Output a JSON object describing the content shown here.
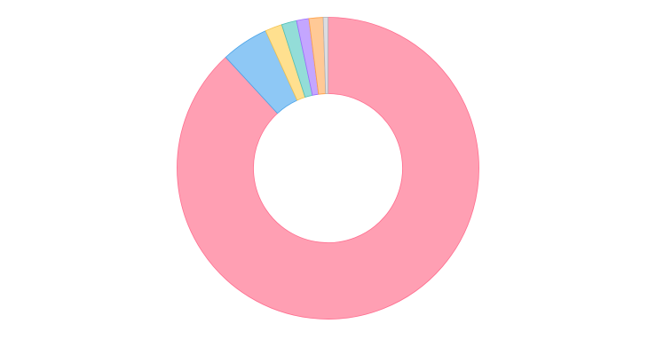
{
  "chart_data": {
    "type": "pie",
    "variant": "donut",
    "title": "",
    "legend": "none",
    "slices": [
      {
        "value": 87.0,
        "fill": "#ff9fb3",
        "stroke": "#ff6e8f"
      },
      {
        "value": 5.0,
        "fill": "#8ec8f5",
        "stroke": "#4aa3e8"
      },
      {
        "value": 1.8,
        "fill": "#ffe08f",
        "stroke": "#f2c14e"
      },
      {
        "value": 1.6,
        "fill": "#93ddd8",
        "stroke": "#50bfb6"
      },
      {
        "value": 1.3,
        "fill": "#c4a6ff",
        "stroke": "#9b6cff"
      },
      {
        "value": 1.5,
        "fill": "#ffc996",
        "stroke": "#ff9f45"
      },
      {
        "value": 0.5,
        "fill": "#dcdde1",
        "stroke": "#b0b2b8"
      }
    ]
  }
}
